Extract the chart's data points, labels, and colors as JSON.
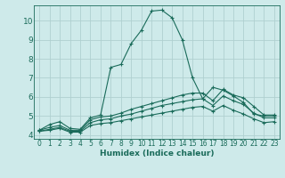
{
  "xlabel": "Humidex (Indice chaleur)",
  "bg_color": "#ceeaea",
  "grid_color": "#b0d0d0",
  "line_color": "#1a6b5a",
  "xlim": [
    -0.5,
    23.5
  ],
  "ylim": [
    3.8,
    10.8
  ],
  "yticks": [
    4,
    5,
    6,
    7,
    8,
    9,
    10
  ],
  "xticks": [
    0,
    1,
    2,
    3,
    4,
    5,
    6,
    7,
    8,
    9,
    10,
    11,
    12,
    13,
    14,
    15,
    16,
    17,
    18,
    19,
    20,
    21,
    22,
    23
  ],
  "series": [
    {
      "x": [
        0,
        1,
        2,
        3,
        4,
        5,
        6,
        7,
        8,
        9,
        10,
        11,
        12,
        13,
        14,
        15,
        16,
        17,
        18,
        19,
        20,
        21,
        22,
        23
      ],
      "y": [
        4.25,
        4.55,
        4.7,
        4.35,
        4.3,
        4.9,
        5.05,
        7.55,
        7.7,
        8.8,
        9.5,
        10.5,
        10.55,
        10.15,
        9.0,
        7.0,
        5.9,
        6.5,
        6.35,
        6.05,
        5.7,
        5.1,
        5.0,
        5.0
      ]
    },
    {
      "x": [
        0,
        1,
        2,
        3,
        4,
        5,
        6,
        7,
        8,
        9,
        10,
        11,
        12,
        13,
        14,
        15,
        16,
        17,
        18,
        19,
        20,
        21,
        22,
        23
      ],
      "y": [
        4.25,
        4.4,
        4.5,
        4.25,
        4.25,
        4.8,
        4.95,
        5.0,
        5.15,
        5.35,
        5.5,
        5.65,
        5.8,
        5.95,
        6.1,
        6.2,
        6.2,
        5.8,
        6.4,
        6.1,
        5.95,
        5.5,
        5.05,
        5.05
      ]
    },
    {
      "x": [
        0,
        1,
        2,
        3,
        4,
        5,
        6,
        7,
        8,
        9,
        10,
        11,
        12,
        13,
        14,
        15,
        16,
        17,
        18,
        19,
        20,
        21,
        22,
        23
      ],
      "y": [
        4.2,
        4.3,
        4.4,
        4.2,
        4.2,
        4.65,
        4.8,
        4.85,
        5.0,
        5.1,
        5.25,
        5.4,
        5.55,
        5.65,
        5.75,
        5.85,
        5.9,
        5.55,
        6.05,
        5.8,
        5.6,
        5.15,
        4.9,
        4.9
      ]
    },
    {
      "x": [
        0,
        1,
        2,
        3,
        4,
        5,
        6,
        7,
        8,
        9,
        10,
        11,
        12,
        13,
        14,
        15,
        16,
        17,
        18,
        19,
        20,
        21,
        22,
        23
      ],
      "y": [
        4.2,
        4.25,
        4.35,
        4.15,
        4.15,
        4.5,
        4.6,
        4.65,
        4.75,
        4.85,
        4.95,
        5.05,
        5.15,
        5.25,
        5.35,
        5.45,
        5.5,
        5.25,
        5.55,
        5.3,
        5.1,
        4.85,
        4.65,
        4.7
      ]
    }
  ]
}
